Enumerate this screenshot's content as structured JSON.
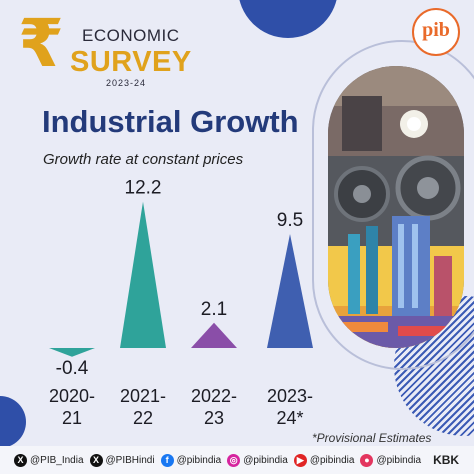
{
  "header": {
    "rupee_symbol": "₹",
    "economic": "ECONOMIC",
    "survey": "SURVEY",
    "year": "2023-24",
    "pib_mark": "pib"
  },
  "chart_data": {
    "type": "bar",
    "title": "Industrial Growth",
    "subtitle": "Growth rate at constant prices",
    "categories": [
      "2020-21",
      "2021-22",
      "2022-23",
      "2023-24*"
    ],
    "category_lines": [
      [
        "2020-",
        "21"
      ],
      [
        "2021-",
        "22"
      ],
      [
        "2022-",
        "23"
      ],
      [
        "2023-",
        "24*"
      ]
    ],
    "values": [
      -0.4,
      12.2,
      2.1,
      9.5
    ],
    "value_labels": [
      "-0.4",
      "12.2",
      "2.1",
      "9.5"
    ],
    "colors": [
      "#2fa39a",
      "#2fa39a",
      "#8a4ea8",
      "#3f5fb0"
    ],
    "ylim": [
      -0.4,
      12.2
    ],
    "grid": false,
    "legend": "none"
  },
  "note": "*Provisional Estimates",
  "footer": {
    "handles": [
      {
        "icon": "x-icon",
        "label": "@PIB_India",
        "color": "#111111",
        "glyph": "X"
      },
      {
        "icon": "x-icon",
        "label": "@PIBHindi",
        "color": "#111111",
        "glyph": "X"
      },
      {
        "icon": "facebook-icon",
        "label": "@pibindia",
        "color": "#1877f2",
        "glyph": "f"
      },
      {
        "icon": "instagram-icon",
        "label": "@pibindia",
        "color": "#d6249f",
        "glyph": "◎"
      },
      {
        "icon": "youtube-icon",
        "label": "@pibindia",
        "color": "#e02424",
        "glyph": "▶"
      },
      {
        "icon": "koo-icon",
        "label": "@pibindia",
        "color": "#e3365f",
        "glyph": "●"
      }
    ],
    "kbk": "KBK"
  }
}
